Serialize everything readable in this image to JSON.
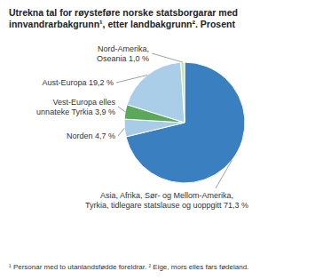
{
  "chart_data": {
    "type": "pie",
    "title": "Utrekna tal for røysteføre norske statsborgarar med\ninnvandrarbakgrunn¹, etter landbakgrunn². Prosent",
    "categories": [
      "Asia, Afrika, Sør- og Mellom-Amerika,\nTyrkia, tidlegare statslause og uoppgitt 71,3 %",
      "Norden 4,7 %",
      "Vest-Europa elles\nunnateke Tyrkia 3,9 %",
      "Aust-Europa 19,2 %",
      "Nord-Amerika,\nOseania 1,0 %"
    ],
    "values": [
      71.3,
      4.7,
      3.9,
      19.2,
      1.0
    ],
    "colors": [
      "#3A7FBF",
      "#A8CBE8",
      "#5BA85B",
      "#AACDE8",
      "#C8E6B0"
    ],
    "footnote": "¹ Personar med to utanlandsfødde foreldrar. ² Eige, mors elles fars fødeland."
  }
}
